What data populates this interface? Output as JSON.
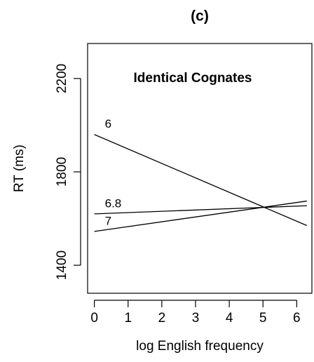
{
  "chart_data": {
    "type": "line",
    "title": "(c)",
    "annotation": "Identical Cognates",
    "xlabel": "log English frequency",
    "ylabel": "RT (ms)",
    "xlim": [
      -0.2,
      6.45
    ],
    "xticks": [
      0,
      1,
      2,
      3,
      4,
      5,
      6
    ],
    "ylim": [
      1280,
      2350
    ],
    "yticks": [
      1400,
      1800,
      2200
    ],
    "x": [
      0,
      6.3
    ],
    "series": [
      {
        "name": "6",
        "color": "#000000",
        "values": [
          1960,
          1570
        ]
      },
      {
        "name": "6.8",
        "color": "#000000",
        "values": [
          1620,
          1655
        ]
      },
      {
        "name": "7",
        "color": "#000000",
        "values": [
          1545,
          1675
        ]
      }
    ]
  }
}
